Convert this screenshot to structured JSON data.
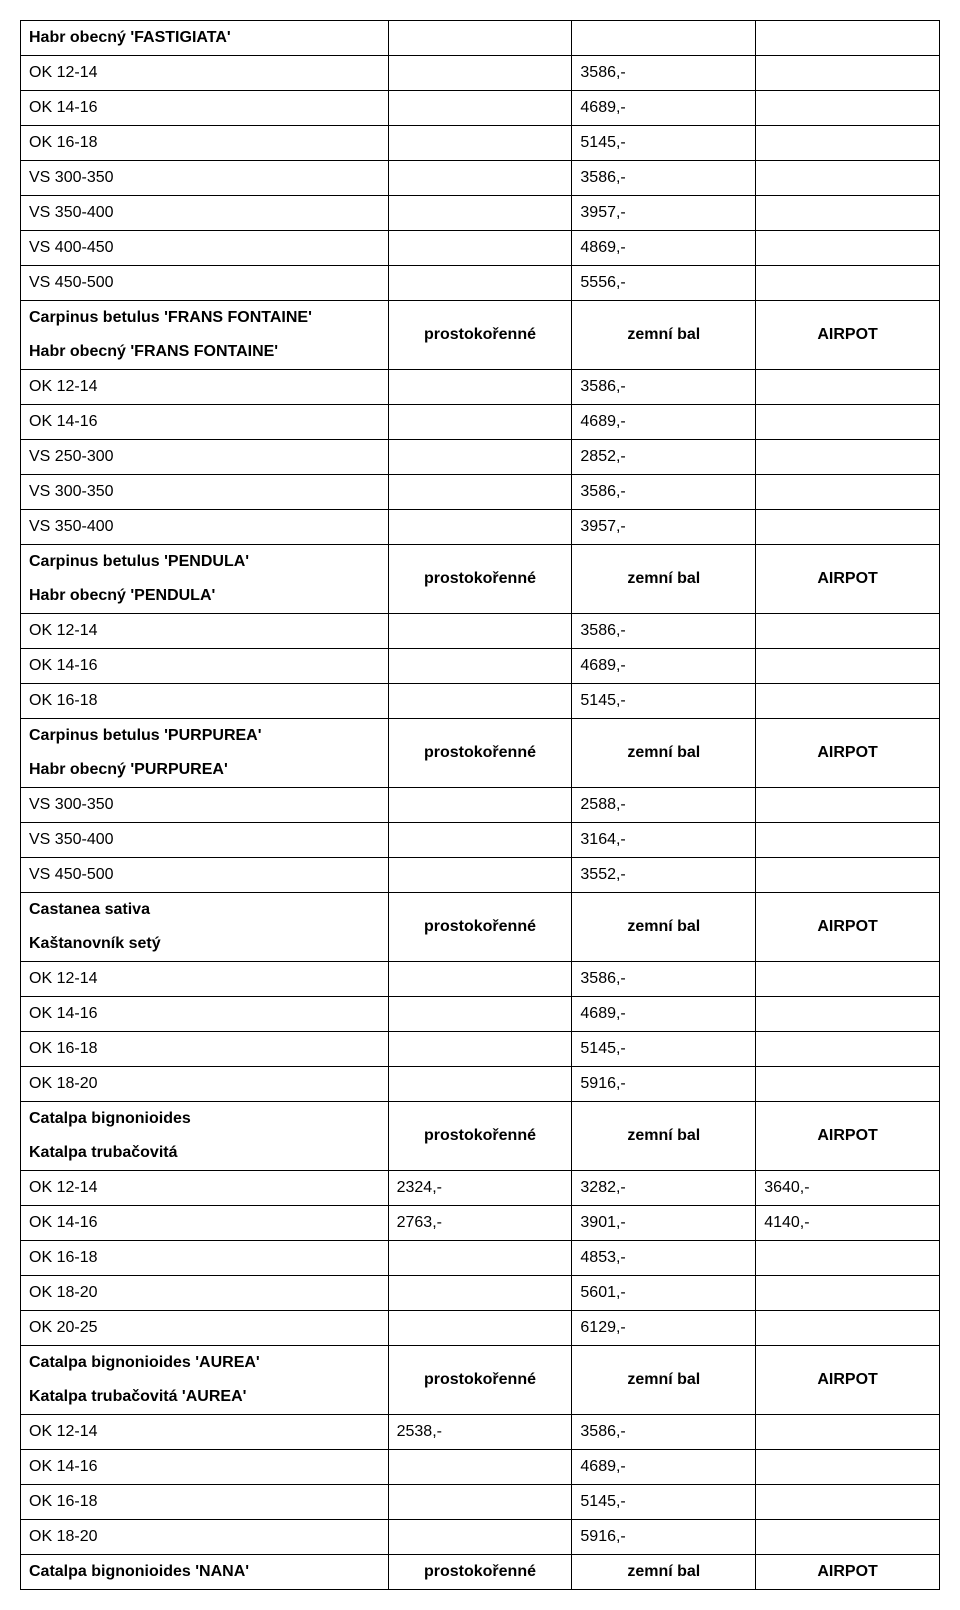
{
  "labels": {
    "col2": "prostokořenné",
    "col3": "zemní bal",
    "col4": "AIRPOT"
  },
  "sections": [
    {
      "title": "Habr obecný 'FASTIGIATA'",
      "header": false,
      "rows": [
        {
          "a": "OK 12-14",
          "c": "3586,-"
        },
        {
          "a": "OK 14-16",
          "c": "4689,-"
        },
        {
          "a": "OK 16-18",
          "c": "5145,-"
        },
        {
          "a": "VS 300-350",
          "c": "3586,-"
        },
        {
          "a": "VS 350-400",
          "c": "3957,-"
        },
        {
          "a": "VS 400-450",
          "c": "4869,-"
        },
        {
          "a": "VS 450-500",
          "c": "5556,-"
        }
      ]
    },
    {
      "title": "Carpinus betulus 'FRANS FONTAINE'",
      "subtitle": "Habr obecný 'FRANS FONTAINE'",
      "header": true,
      "rows": [
        {
          "a": "OK 12-14",
          "c": "3586,-"
        },
        {
          "a": "OK 14-16",
          "c": "4689,-"
        },
        {
          "a": "VS 250-300",
          "c": "2852,-"
        },
        {
          "a": "VS 300-350",
          "c": "3586,-"
        },
        {
          "a": "VS 350-400",
          "c": "3957,-"
        }
      ]
    },
    {
      "title": "Carpinus betulus 'PENDULA'",
      "subtitle": "Habr obecný 'PENDULA'",
      "header": true,
      "rows": [
        {
          "a": "OK 12-14",
          "c": "3586,-"
        },
        {
          "a": "OK 14-16",
          "c": "4689,-"
        },
        {
          "a": "OK 16-18",
          "c": "5145,-"
        }
      ]
    },
    {
      "title": "Carpinus betulus 'PURPUREA'",
      "subtitle": "Habr obecný 'PURPUREA'",
      "header": true,
      "rows": [
        {
          "a": "VS 300-350",
          "c": "2588,-"
        },
        {
          "a": "VS 350-400",
          "c": "3164,-"
        },
        {
          "a": "VS 450-500",
          "c": "3552,-"
        }
      ]
    },
    {
      "title": "Castanea sativa",
      "subtitle": "Kaštanovník setý",
      "header": true,
      "rows": [
        {
          "a": "OK 12-14",
          "c": "3586,-"
        },
        {
          "a": "OK 14-16",
          "c": "4689,-"
        },
        {
          "a": "OK 16-18",
          "c": "5145,-"
        },
        {
          "a": "OK 18-20",
          "c": "5916,-"
        }
      ]
    },
    {
      "title": "Catalpa bignonioides",
      "subtitle": "Katalpa trubačovitá",
      "header": true,
      "rows": [
        {
          "a": "OK 12-14",
          "b": "2324,-",
          "c": "3282,-",
          "d": "3640,-"
        },
        {
          "a": "OK 14-16",
          "b": "2763,-",
          "c": "3901,-",
          "d": "4140,-"
        },
        {
          "a": "OK 16-18",
          "c": "4853,-"
        },
        {
          "a": "OK 18-20",
          "c": "5601,-"
        },
        {
          "a": "OK 20-25",
          "c": "6129,-"
        }
      ]
    },
    {
      "title": "Catalpa bignonioides 'AUREA'",
      "subtitle": "Katalpa trubačovitá 'AUREA'",
      "header": true,
      "rows": [
        {
          "a": "OK 12-14",
          "b": "2538,-",
          "c": "3586,-"
        },
        {
          "a": "OK 14-16",
          "c": "4689,-"
        },
        {
          "a": "OK 16-18",
          "c": "5145,-"
        },
        {
          "a": "OK 18-20",
          "c": "5916,-"
        }
      ]
    },
    {
      "title": "Catalpa bignonioides 'NANA'",
      "header": true,
      "final": true,
      "rows": []
    }
  ]
}
